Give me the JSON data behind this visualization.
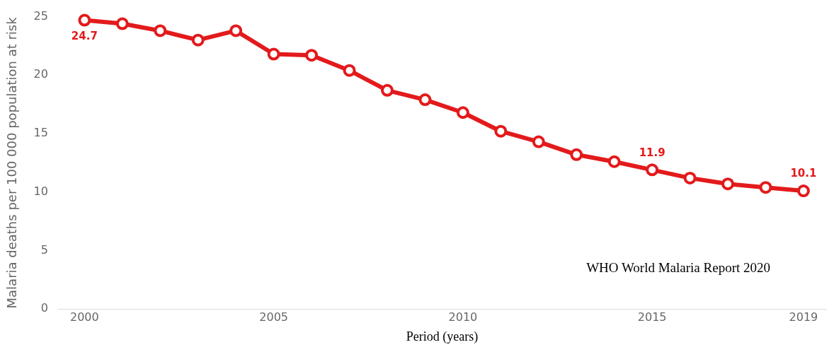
{
  "chart_data": {
    "type": "line",
    "ylabel": "Malaria deaths per 100 000 population at risk",
    "xlabel": "Period (years)",
    "x": [
      2000,
      2001,
      2002,
      2003,
      2004,
      2005,
      2006,
      2007,
      2008,
      2009,
      2010,
      2011,
      2012,
      2013,
      2014,
      2015,
      2016,
      2017,
      2018,
      2019
    ],
    "series": [
      {
        "color": "#e31a1c",
        "values": [
          24.7,
          24.4,
          23.8,
          23.0,
          23.8,
          21.8,
          21.7,
          20.4,
          18.7,
          17.9,
          16.8,
          15.2,
          14.3,
          13.2,
          12.6,
          11.9,
          11.2,
          10.7,
          10.4,
          10.1
        ],
        "value_labels": [
          "24.7",
          null,
          null,
          null,
          null,
          null,
          null,
          null,
          null,
          null,
          null,
          null,
          null,
          null,
          null,
          "11.9",
          null,
          null,
          null,
          "10.1"
        ]
      }
    ],
    "xlim": [
      1999.3,
      2019.6
    ],
    "xticks": [
      2000,
      2005,
      2010,
      2015,
      2019
    ],
    "ylim": [
      0,
      25
    ],
    "yticks": [
      0,
      5,
      10,
      15,
      20,
      25
    ],
    "grid": false,
    "legend": false,
    "marker": "circle",
    "line_style": "solid",
    "annotations": [
      "WHO World Malaria Report 2020"
    ]
  }
}
